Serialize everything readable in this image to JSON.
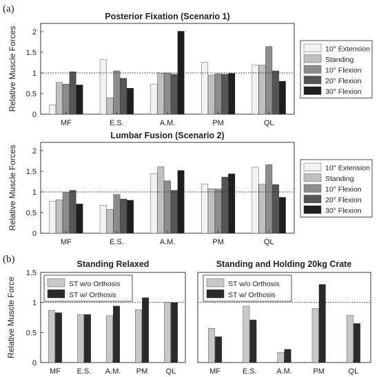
{
  "panel_labels": [
    "(a)",
    "(b)"
  ],
  "chart_data": [
    {
      "type": "bar",
      "title": "Posterior Fixation (Scenario 1)",
      "ylabel": "Relative Muscle Forces",
      "ylim": [
        0,
        2.2
      ],
      "yticks": [
        "0",
        "0.5",
        "1",
        "1.5",
        "2"
      ],
      "reference_line": 1,
      "categories": [
        "MF",
        "E.S.",
        "A.M.",
        "PM",
        "QL"
      ],
      "legend_position": "right",
      "series": [
        {
          "name": "10° Extension",
          "color": "#f2f2f2",
          "values": [
            0.23,
            1.32,
            0.72,
            1.26,
            1.19
          ]
        },
        {
          "name": "Standing",
          "color": "#c0c0c0",
          "values": [
            0.77,
            0.4,
            1.0,
            0.95,
            1.19
          ]
        },
        {
          "name": "10° Flexion",
          "color": "#8c8c8c",
          "values": [
            0.73,
            1.05,
            1.0,
            0.98,
            1.64
          ]
        },
        {
          "name": "20° Flexion",
          "color": "#555555",
          "values": [
            1.03,
            0.87,
            0.97,
            0.97,
            1.05
          ]
        },
        {
          "name": "30° Flexion",
          "color": "#1e1e1e",
          "values": [
            0.71,
            0.63,
            2.01,
            0.99,
            0.8
          ]
        }
      ]
    },
    {
      "type": "bar",
      "title": "Lumbar Fusion (Scenario 2)",
      "ylabel": "Relative Muscle Forces",
      "ylim": [
        0,
        2.2
      ],
      "yticks": [
        "0",
        "0.5",
        "1",
        "1.5",
        "2"
      ],
      "reference_line": 1,
      "categories": [
        "MF",
        "E.S.",
        "A.M.",
        "PM",
        "QL"
      ],
      "legend_position": "right",
      "series": [
        {
          "name": "10° Extension",
          "color": "#f2f2f2",
          "values": [
            0.78,
            0.68,
            1.44,
            1.19,
            1.6
          ]
        },
        {
          "name": "Standing",
          "color": "#c0c0c0",
          "values": [
            0.81,
            0.58,
            1.61,
            1.08,
            1.19
          ]
        },
        {
          "name": "10° Flexion",
          "color": "#8c8c8c",
          "values": [
            0.99,
            0.94,
            1.27,
            1.07,
            1.66
          ]
        },
        {
          "name": "20° Flexion",
          "color": "#555555",
          "values": [
            1.04,
            0.83,
            1.04,
            1.36,
            1.18
          ]
        },
        {
          "name": "30° Flexion",
          "color": "#1e1e1e",
          "values": [
            0.71,
            0.8,
            1.52,
            1.44,
            0.87
          ]
        }
      ]
    },
    {
      "type": "bar",
      "title": "Standing Relaxed",
      "ylabel": "Relative Muscle Force",
      "ylim": [
        0,
        1.5
      ],
      "yticks": [
        "0",
        "0.5",
        "1",
        "1.5"
      ],
      "reference_line": 1,
      "categories": [
        "MF",
        "E.S.",
        "A.M.",
        "PM",
        "QL"
      ],
      "legend_position": "top-left",
      "series": [
        {
          "name": "ST w/o Orthosis",
          "color": "#c8c8c8",
          "values": [
            0.87,
            0.8,
            0.78,
            0.88,
            1.0
          ]
        },
        {
          "name": "ST w/ Orthosis",
          "color": "#2b2b2b",
          "values": [
            0.83,
            0.8,
            0.94,
            1.08,
            1.0
          ]
        }
      ]
    },
    {
      "type": "bar",
      "title": "Standing and Holding 20kg Crate",
      "ylabel": "",
      "ylim": [
        0,
        1.5
      ],
      "yticks": [],
      "reference_line": 1,
      "categories": [
        "MF",
        "E.S.",
        "A.M.",
        "PM",
        "QL"
      ],
      "legend_position": "top-left",
      "series": [
        {
          "name": "ST w/o Orthosis",
          "color": "#c8c8c8",
          "values": [
            0.57,
            0.94,
            0.17,
            0.9,
            0.79
          ]
        },
        {
          "name": "ST w/ Orthosis",
          "color": "#2b2b2b",
          "values": [
            0.43,
            0.71,
            0.22,
            1.3,
            0.65
          ]
        }
      ]
    }
  ]
}
